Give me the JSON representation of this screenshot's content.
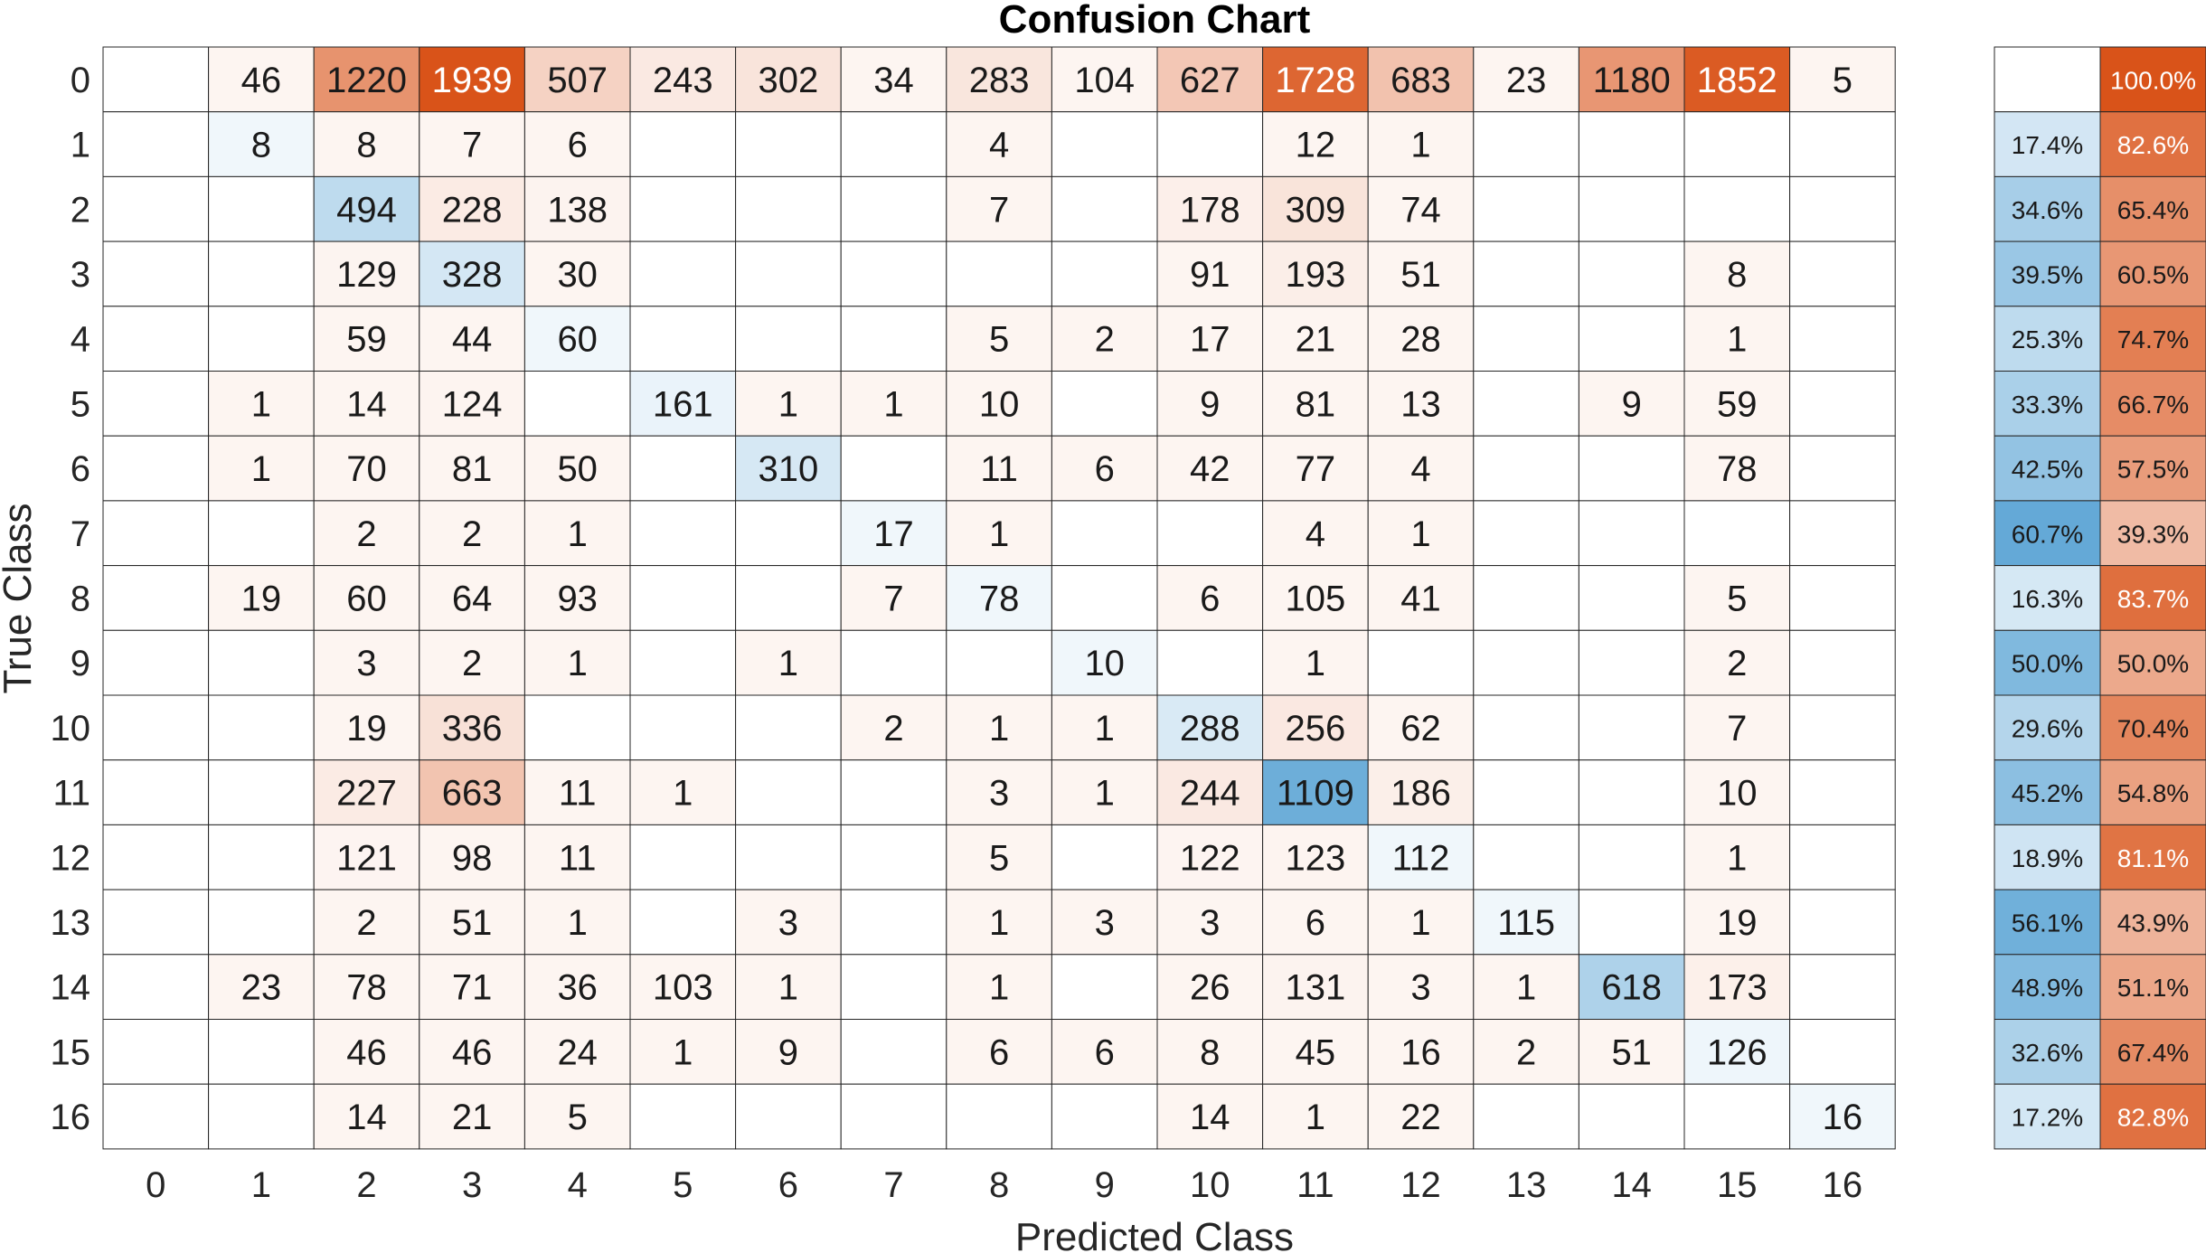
{
  "chart_data": {
    "type": "heatmap",
    "title": "Confusion Chart",
    "xlabel": "Predicted Class",
    "ylabel": "True Class",
    "classes": [
      "0",
      "1",
      "2",
      "3",
      "4",
      "5",
      "6",
      "7",
      "8",
      "9",
      "10",
      "11",
      "12",
      "13",
      "14",
      "15",
      "16"
    ],
    "matrix": [
      [
        0,
        46,
        1220,
        1939,
        507,
        243,
        302,
        34,
        283,
        104,
        627,
        1728,
        683,
        23,
        1180,
        1852,
        5
      ],
      [
        0,
        8,
        8,
        7,
        6,
        0,
        0,
        0,
        4,
        0,
        0,
        12,
        1,
        0,
        0,
        0,
        0
      ],
      [
        0,
        0,
        494,
        228,
        138,
        0,
        0,
        0,
        7,
        0,
        178,
        309,
        74,
        0,
        0,
        0,
        0
      ],
      [
        0,
        0,
        129,
        328,
        30,
        0,
        0,
        0,
        0,
        0,
        91,
        193,
        51,
        0,
        0,
        8,
        0
      ],
      [
        0,
        0,
        59,
        44,
        60,
        0,
        0,
        0,
        5,
        2,
        17,
        21,
        28,
        0,
        0,
        1,
        0
      ],
      [
        0,
        1,
        14,
        124,
        0,
        161,
        1,
        1,
        10,
        0,
        9,
        81,
        13,
        0,
        9,
        59,
        0
      ],
      [
        0,
        1,
        70,
        81,
        50,
        0,
        310,
        0,
        11,
        6,
        42,
        77,
        4,
        0,
        0,
        78,
        0
      ],
      [
        0,
        0,
        2,
        2,
        1,
        0,
        0,
        17,
        1,
        0,
        0,
        4,
        1,
        0,
        0,
        0,
        0
      ],
      [
        0,
        19,
        60,
        64,
        93,
        0,
        0,
        7,
        78,
        0,
        6,
        105,
        41,
        0,
        0,
        5,
        0
      ],
      [
        0,
        0,
        3,
        2,
        1,
        0,
        1,
        0,
        0,
        10,
        0,
        1,
        0,
        0,
        0,
        2,
        0
      ],
      [
        0,
        0,
        19,
        336,
        0,
        0,
        0,
        2,
        1,
        1,
        288,
        256,
        62,
        0,
        0,
        7,
        0
      ],
      [
        0,
        0,
        227,
        663,
        11,
        1,
        0,
        0,
        3,
        1,
        244,
        1109,
        186,
        0,
        0,
        10,
        0
      ],
      [
        0,
        0,
        121,
        98,
        11,
        0,
        0,
        0,
        5,
        0,
        122,
        123,
        112,
        0,
        0,
        1,
        0
      ],
      [
        0,
        0,
        2,
        51,
        1,
        0,
        3,
        0,
        1,
        3,
        3,
        6,
        1,
        115,
        0,
        19,
        0
      ],
      [
        0,
        23,
        78,
        71,
        36,
        103,
        1,
        0,
        1,
        0,
        26,
        131,
        3,
        1,
        618,
        173,
        0
      ],
      [
        0,
        0,
        46,
        46,
        24,
        1,
        9,
        0,
        6,
        6,
        8,
        45,
        16,
        2,
        51,
        126,
        0
      ],
      [
        0,
        0,
        14,
        21,
        5,
        0,
        0,
        0,
        0,
        0,
        14,
        1,
        22,
        0,
        0,
        0,
        16
      ]
    ],
    "row_summary": {
      "correct": [
        "",
        "17.4%",
        "34.6%",
        "39.5%",
        "25.3%",
        "33.3%",
        "42.5%",
        "60.7%",
        "16.3%",
        "50.0%",
        "29.6%",
        "45.2%",
        "18.9%",
        "56.1%",
        "48.9%",
        "32.6%",
        "17.2%"
      ],
      "incorrect": [
        "100.0%",
        "82.6%",
        "65.4%",
        "60.5%",
        "74.7%",
        "66.7%",
        "57.5%",
        "39.3%",
        "83.7%",
        "50.0%",
        "70.4%",
        "54.8%",
        "81.1%",
        "43.9%",
        "51.1%",
        "67.4%",
        "82.8%"
      ]
    },
    "colors": {
      "correct": "#0072bd",
      "incorrect": "#d95319",
      "grid": "#262626"
    }
  }
}
